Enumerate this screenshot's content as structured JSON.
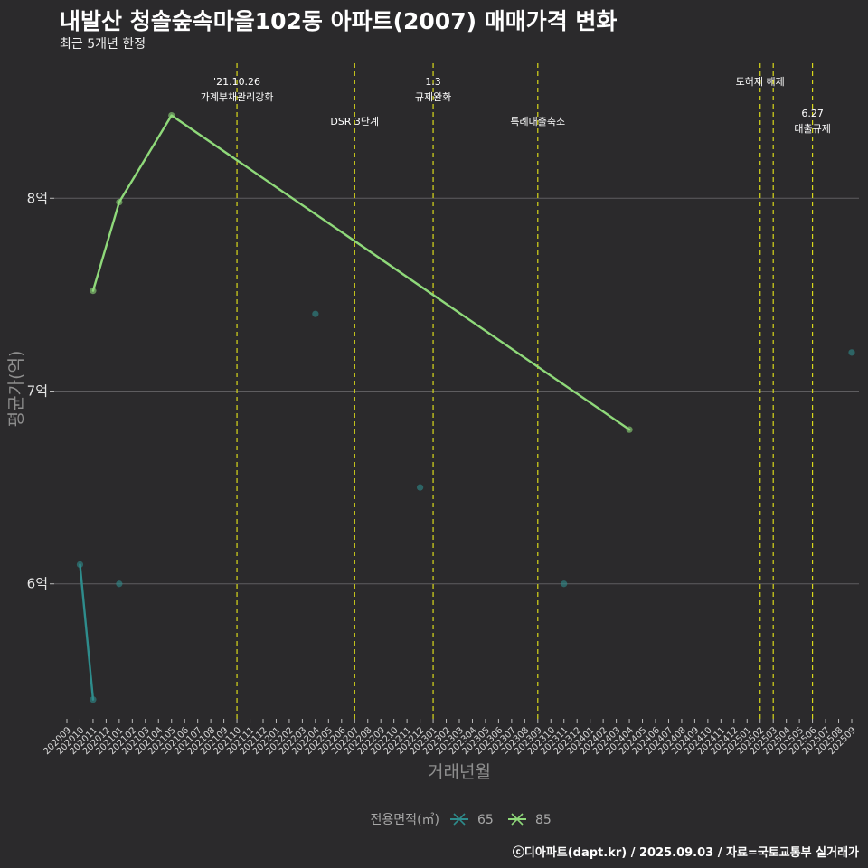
{
  "header": {
    "title": "내발산 청솔숲속마을102동 아파트(2007) 매매가격 변화",
    "subtitle": "최근 5개년 한정"
  },
  "footer": {
    "caption": "ⓒ디아파트(dapt.kr) / 2025.09.03 / 자료=국토교통부 실거래가"
  },
  "chart_data": {
    "type": "line",
    "xlabel": "거래년월",
    "ylabel": "평균가(억)",
    "ylim": [
      5.3,
      8.7
    ],
    "y_ticks": [
      {
        "value": 6,
        "label": "6억"
      },
      {
        "value": 7,
        "label": "7억"
      },
      {
        "value": 8,
        "label": "8억"
      }
    ],
    "categories": [
      "202009",
      "202010",
      "202011",
      "202012",
      "202101",
      "202102",
      "202103",
      "202104",
      "202105",
      "202106",
      "202107",
      "202108",
      "202109",
      "202110",
      "202111",
      "202112",
      "202201",
      "202202",
      "202203",
      "202204",
      "202205",
      "202206",
      "202207",
      "202208",
      "202209",
      "202210",
      "202211",
      "202212",
      "202301",
      "202302",
      "202303",
      "202304",
      "202305",
      "202306",
      "202307",
      "202308",
      "202309",
      "202310",
      "202311",
      "202312",
      "202401",
      "202402",
      "202403",
      "202404",
      "202405",
      "202406",
      "202407",
      "202408",
      "202409",
      "202410",
      "202411",
      "202412",
      "202501",
      "202502",
      "202503",
      "202504",
      "202505",
      "202506",
      "202507",
      "202508",
      "202509"
    ],
    "series": [
      {
        "name": "65",
        "color": "#2e8c8c",
        "lines": [
          [
            {
              "x": "202010",
              "y": 6.1
            },
            {
              "x": "202011",
              "y": 5.4
            }
          ]
        ],
        "points": [
          {
            "x": "202010",
            "y": 6.1
          },
          {
            "x": "202011",
            "y": 5.4
          },
          {
            "x": "202101",
            "y": 6.0
          },
          {
            "x": "202204",
            "y": 7.4
          },
          {
            "x": "202212",
            "y": 6.5
          },
          {
            "x": "202311",
            "y": 6.0
          },
          {
            "x": "202509",
            "y": 7.2
          }
        ]
      },
      {
        "name": "85",
        "color": "#8fd97a",
        "lines": [
          [
            {
              "x": "202011",
              "y": 7.52
            },
            {
              "x": "202101",
              "y": 7.98
            },
            {
              "x": "202105",
              "y": 8.43
            },
            {
              "x": "202404",
              "y": 6.8
            }
          ]
        ],
        "points": [
          {
            "x": "202011",
            "y": 7.52
          },
          {
            "x": "202101",
            "y": 7.98
          },
          {
            "x": "202105",
            "y": 8.43
          },
          {
            "x": "202404",
            "y": 6.8
          }
        ]
      }
    ],
    "events": [
      {
        "x": "202110",
        "lines": [
          "'21.10.26",
          "가계부채관리강화"
        ],
        "row": 0
      },
      {
        "x": "202207",
        "lines": [
          "DSR 3단계"
        ],
        "row": 1
      },
      {
        "x": "202301",
        "lines": [
          "1.3",
          "규제완화"
        ],
        "row": 0
      },
      {
        "x": "202309",
        "lines": [
          "특례대출축소"
        ],
        "row": 1
      },
      {
        "x": "202502",
        "lines": [
          "토허제 해제"
        ],
        "row": 0
      },
      {
        "x": "202503",
        "lines": [],
        "row": 0
      },
      {
        "x": "202506",
        "lines": [
          "6.27",
          "대출규제"
        ],
        "row": 2
      }
    ],
    "legend": {
      "title": "전용면적(㎡)",
      "position": "bottom",
      "items": [
        {
          "label": "65",
          "color": "#2e8c8c"
        },
        {
          "label": "85",
          "color": "#8fd97a"
        }
      ]
    },
    "grid": true
  }
}
